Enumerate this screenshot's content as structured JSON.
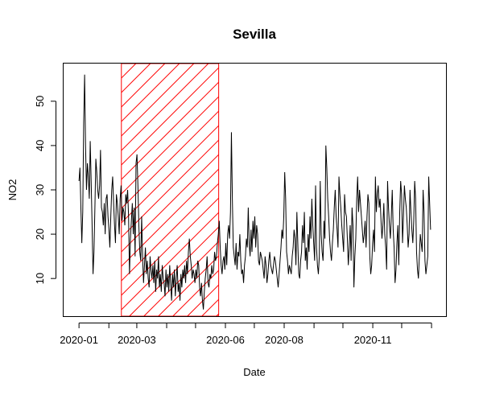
{
  "chart_data": {
    "type": "line",
    "title": "Sevilla",
    "xlabel": "Date",
    "ylabel": "NO2",
    "x_axis": "date",
    "x_start_date": "2020-01-01",
    "x_end_date": "2020-12-31",
    "xlim": [
      "2019-12-16",
      "2021-01-16"
    ],
    "ylim": [
      1.5,
      58.5
    ],
    "x_ticks": [
      {
        "date": "2020-01-01",
        "label": "2020-01"
      },
      {
        "date": "2020-02-01",
        "label": ""
      },
      {
        "date": "2020-03-01",
        "label": "2020-03"
      },
      {
        "date": "2020-04-01",
        "label": ""
      },
      {
        "date": "2020-05-01",
        "label": ""
      },
      {
        "date": "2020-06-01",
        "label": "2020-06"
      },
      {
        "date": "2020-07-01",
        "label": ""
      },
      {
        "date": "2020-08-01",
        "label": "2020-08"
      },
      {
        "date": "2020-09-01",
        "label": ""
      },
      {
        "date": "2020-10-01",
        "label": ""
      },
      {
        "date": "2020-11-01",
        "label": "2020-11"
      },
      {
        "date": "2020-12-01",
        "label": ""
      },
      {
        "date": "2021-01-01",
        "label": ""
      }
    ],
    "y_ticks": [
      10,
      20,
      30,
      40,
      50
    ],
    "highlight_region": {
      "start": "2020-02-14",
      "end": "2020-05-25",
      "color": "#ff0000",
      "fill": "hatched"
    },
    "series_values": [
      32,
      35,
      26,
      18,
      25,
      45,
      56,
      40,
      30,
      36,
      33,
      28,
      41,
      32,
      22,
      11,
      16,
      26,
      37,
      34,
      30,
      28,
      31,
      39,
      26,
      25,
      22,
      27,
      20,
      28,
      29,
      24,
      21,
      17,
      24,
      30,
      33,
      27,
      22,
      18,
      29,
      27,
      24,
      20,
      28,
      31,
      23,
      26,
      25,
      22,
      29,
      27,
      30,
      24,
      11,
      19,
      23,
      27,
      20,
      26,
      15,
      36,
      38,
      31,
      22,
      16,
      14,
      24,
      15,
      9,
      13,
      17,
      11,
      14,
      10,
      8,
      15,
      12,
      10,
      13,
      9,
      14,
      7,
      12,
      10,
      15,
      8,
      11,
      7,
      13,
      10,
      9,
      6,
      12,
      8,
      11,
      7,
      13,
      9,
      5,
      11,
      8,
      12,
      6,
      10,
      13,
      7,
      9,
      5,
      11,
      8,
      12,
      10,
      13,
      9,
      14,
      11,
      16,
      19,
      15,
      13,
      10,
      12,
      11,
      9,
      12,
      10,
      14,
      13,
      8,
      6,
      9,
      5,
      3,
      7,
      10,
      12,
      15,
      9,
      8,
      11,
      10,
      13,
      11,
      12,
      16,
      14,
      15,
      18,
      20,
      23,
      17,
      13,
      11,
      14,
      15,
      12,
      18,
      13,
      20,
      22,
      19,
      25,
      43,
      28,
      17,
      15,
      13,
      18,
      12,
      16,
      15,
      20,
      14,
      11,
      12,
      9,
      13,
      15,
      19,
      17,
      26,
      18,
      15,
      21,
      16,
      23,
      19,
      24,
      17,
      22,
      20,
      14,
      13,
      16,
      15,
      14,
      12,
      10,
      15,
      13,
      9,
      11,
      14,
      16,
      13,
      12,
      11,
      13,
      15,
      14,
      12,
      10,
      8,
      11,
      14,
      17,
      21,
      19,
      24,
      34,
      28,
      16,
      14,
      11,
      13,
      12,
      11,
      15,
      17,
      21,
      19,
      13,
      25,
      18,
      11,
      10,
      14,
      16,
      22,
      18,
      25,
      14,
      17,
      12,
      20,
      16,
      24,
      19,
      28,
      22,
      18,
      14,
      31,
      17,
      13,
      11,
      15,
      32,
      20,
      16,
      14,
      23,
      19,
      40,
      35,
      28,
      24,
      19,
      16,
      14,
      18,
      21,
      26,
      30,
      24,
      21,
      17,
      33,
      29,
      26,
      22,
      19,
      16,
      29,
      25,
      24,
      19,
      13,
      17,
      22,
      14,
      26,
      22,
      8,
      15,
      19,
      28,
      33,
      25,
      30,
      27,
      24,
      21,
      18,
      20,
      23,
      17,
      24,
      29,
      27,
      15,
      11,
      13,
      18,
      21,
      16,
      33,
      25,
      29,
      31,
      26,
      28,
      23,
      19,
      22,
      27,
      20,
      17,
      12,
      32,
      26,
      22,
      19,
      24,
      30,
      21,
      17,
      9,
      12,
      18,
      22,
      13,
      25,
      32,
      29,
      18,
      24,
      31,
      28,
      26,
      22,
      17,
      20,
      30,
      25,
      21,
      18,
      23,
      32,
      28,
      16,
      12,
      10,
      15,
      20,
      18,
      16,
      30,
      25,
      14,
      11,
      13,
      15,
      33,
      27,
      21
    ]
  }
}
